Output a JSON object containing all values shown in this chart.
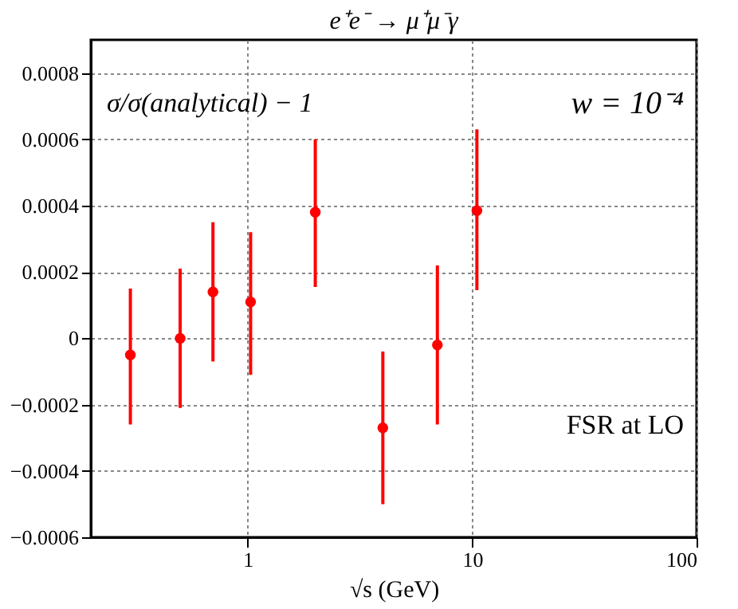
{
  "chart_data": {
    "type": "scatter",
    "title": "e⁺e⁻ → μ⁺μ⁻γ",
    "xlabel": "√s (GeV)",
    "x": [
      0.3,
      0.5,
      0.7,
      1.03,
      2.0,
      4.0,
      7.0,
      10.5
    ],
    "series": [
      {
        "color": "#ff0000",
        "values": [
          -5e-05,
          0.0,
          0.00014,
          0.00011,
          0.00038,
          -0.00027,
          -2e-05,
          0.000385
        ],
        "errors": [
          [
            -0.00026,
            0.00015
          ],
          [
            -0.00021,
            0.00021
          ],
          [
            -7e-05,
            0.00035
          ],
          [
            -0.00011,
            0.00032
          ],
          [
            0.000155,
            0.0006
          ],
          [
            -0.0005,
            -4e-05
          ],
          [
            -0.00026,
            0.00022
          ],
          [
            0.000145,
            0.00063
          ]
        ]
      }
    ],
    "xlim": [
      0.2,
      100
    ],
    "xticks": [
      1,
      10,
      100
    ],
    "ylim": [
      -0.0006,
      0.0009
    ],
    "yticks": [
      -0.0006,
      -0.0004,
      -0.0002,
      0,
      0.0002,
      0.0004,
      0.0006,
      0.0008
    ],
    "log": "x",
    "grid": true,
    "marker": "circle",
    "annotations": [
      "σ/σ(analytical) − 1",
      "w = 10⁻⁴",
      "FSR at LO"
    ]
  }
}
